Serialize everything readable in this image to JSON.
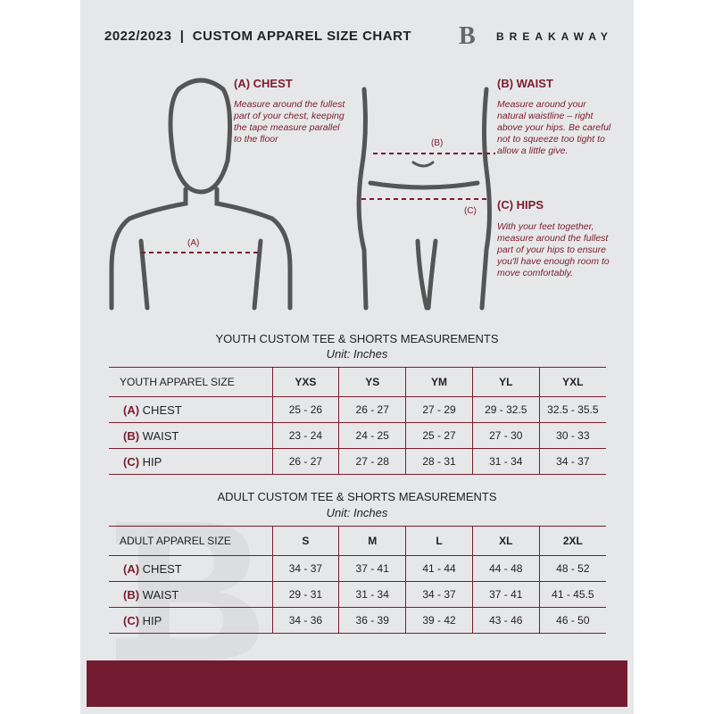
{
  "header": {
    "title": "2022/2023  |  CUSTOM APPAREL SIZE CHART",
    "brand": "BREAKAWAY",
    "logo_letter": "B"
  },
  "chest": {
    "heading": "(A) CHEST",
    "text": "Measure around the fullest part of your chest, keeping the tape measure parallel to the floor",
    "marker": "(A)"
  },
  "waist": {
    "heading": "(B) WAIST",
    "text": "Measure around your natural waistline – right above your hips. Be careful not to squeeze too tight to allow a little give.",
    "marker": "(B)"
  },
  "hips": {
    "heading": "(C) HIPS",
    "text": "With your feet together, measure around the fullest part of your hips to ensure you'll have enough room to move comfortably.",
    "marker": "(C)"
  },
  "accent": "#7a1c2e",
  "youth": {
    "title": "YOUTH CUSTOM TEE & SHORTS MEASUREMENTS",
    "unit": "Unit: Inches",
    "size_label": "YOUTH APPAREL SIZE",
    "sizes": [
      "YXS",
      "YS",
      "YM",
      "YL",
      "YXL"
    ],
    "rows": [
      {
        "code": "(A)",
        "name": "CHEST",
        "values": [
          "25 - 26",
          "26 - 27",
          "27 - 29",
          "29 - 32.5",
          "32.5 - 35.5"
        ]
      },
      {
        "code": "(B)",
        "name": "WAIST",
        "values": [
          "23 - 24",
          "24 - 25",
          "25 - 27",
          "27 - 30",
          "30 - 33"
        ]
      },
      {
        "code": "(C)",
        "name": "HIP",
        "values": [
          "26 - 27",
          "27 - 28",
          "28 - 31",
          "31 - 34",
          "34 - 37"
        ]
      }
    ]
  },
  "adult": {
    "title": "ADULT CUSTOM TEE & SHORTS MEASUREMENTS",
    "unit": "Unit: Inches",
    "size_label": "ADULT APPAREL SIZE",
    "sizes": [
      "S",
      "M",
      "L",
      "XL",
      "2XL"
    ],
    "rows": [
      {
        "code": "(A)",
        "name": "CHEST",
        "values": [
          "34 - 37",
          "37 - 41",
          "41 - 44",
          "44 - 48",
          "48 - 52"
        ]
      },
      {
        "code": "(B)",
        "name": "WAIST",
        "values": [
          "29 - 31",
          "31 - 34",
          "34 - 37",
          "37 - 41",
          "41 - 45.5"
        ]
      },
      {
        "code": "(C)",
        "name": "HIP",
        "values": [
          "34 - 36",
          "36 - 39",
          "39 - 42",
          "43 - 46",
          "46 - 50"
        ]
      }
    ]
  }
}
